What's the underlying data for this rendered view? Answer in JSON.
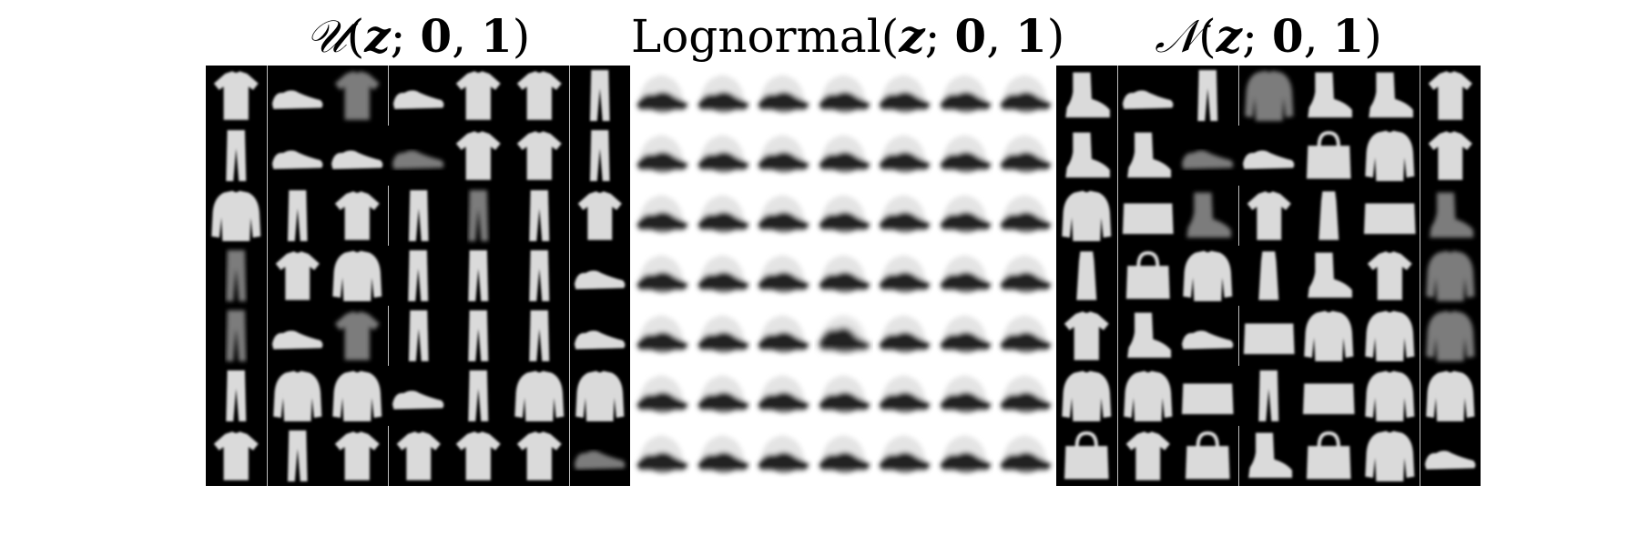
{
  "figure": {
    "panels": [
      {
        "id": "uniform",
        "title_parts": [
          {
            "text": "𝒰",
            "style": "it"
          },
          {
            "text": "(",
            "style": ""
          },
          {
            "text": "z",
            "style": "it bd"
          },
          {
            "text": "; ",
            "style": ""
          },
          {
            "text": "0",
            "style": "bd"
          },
          {
            "text": ", ",
            "style": ""
          },
          {
            "text": "1",
            "style": "bd"
          },
          {
            "text": ")",
            "style": ""
          }
        ],
        "background": "dark",
        "tiles": [
          [
            "shirt",
            "shoe",
            "shirt-faint",
            "shoe",
            "shirt",
            "shirt",
            "trouser"
          ],
          [
            "trouser",
            "shoe",
            "shoe",
            "shoe-faint",
            "shirt",
            "shirt",
            "trouser"
          ],
          [
            "pullover",
            "trouser",
            "shirt",
            "trouser",
            "trouser-faint",
            "trouser",
            "shirt"
          ],
          [
            "trouser-faint",
            "shirt",
            "pullover",
            "trouser",
            "trouser",
            "trouser",
            "shoe"
          ],
          [
            "trouser-faint",
            "shoe",
            "shirt-faint",
            "trouser",
            "trouser",
            "trouser",
            "shoe"
          ],
          [
            "trouser",
            "pullover",
            "pullover",
            "shoe",
            "trouser",
            "pullover",
            "pullover"
          ],
          [
            "shirt",
            "trouser",
            "shirt",
            "shirt",
            "shirt",
            "shirt",
            "shoe-faint"
          ]
        ]
      },
      {
        "id": "lognormal",
        "title_parts": [
          {
            "text": "Lognormal",
            "style": ""
          },
          {
            "text": "(",
            "style": ""
          },
          {
            "text": "z",
            "style": "it bd"
          },
          {
            "text": "; ",
            "style": ""
          },
          {
            "text": "0",
            "style": "bd"
          },
          {
            "text": ", ",
            "style": ""
          },
          {
            "text": "1",
            "style": "bd"
          },
          {
            "text": ")",
            "style": ""
          }
        ],
        "background": "light",
        "tiles": [
          [
            "blob",
            "blob",
            "blob",
            "blob",
            "blob",
            "blob",
            "blob"
          ],
          [
            "blob",
            "blob",
            "blob",
            "blob",
            "blob",
            "blob",
            "blob"
          ],
          [
            "blob",
            "blob",
            "blob",
            "blob",
            "blob",
            "blob",
            "blob"
          ],
          [
            "blob",
            "blob",
            "blob",
            "blob",
            "blob",
            "blob",
            "blob"
          ],
          [
            "blob",
            "blob",
            "blob",
            "blob-big",
            "blob",
            "blob",
            "blob"
          ],
          [
            "blob",
            "blob",
            "blob",
            "blob",
            "blob",
            "blob",
            "blob"
          ],
          [
            "blob",
            "blob",
            "blob",
            "blob",
            "blob",
            "blob",
            "blob"
          ]
        ]
      },
      {
        "id": "normal",
        "title_parts": [
          {
            "text": "𝒩",
            "style": "it"
          },
          {
            "text": "(",
            "style": ""
          },
          {
            "text": "z",
            "style": "it bd"
          },
          {
            "text": "; ",
            "style": ""
          },
          {
            "text": "0",
            "style": "bd"
          },
          {
            "text": ", ",
            "style": ""
          },
          {
            "text": "1",
            "style": "bd"
          },
          {
            "text": ")",
            "style": ""
          }
        ],
        "background": "dark",
        "tiles": [
          [
            "boot",
            "shoe",
            "trouser",
            "pullover-faint",
            "boot",
            "boot",
            "shirt"
          ],
          [
            "boot",
            "boot",
            "shoe-faint",
            "shoe",
            "bag",
            "pullover",
            "shirt"
          ],
          [
            "pullover",
            "bag-wide",
            "boot-faint",
            "shirt",
            "dress",
            "bag-wide",
            "boot-faint"
          ],
          [
            "dress",
            "bag",
            "pullover",
            "dress",
            "boot",
            "shirt",
            "pullover-faint"
          ],
          [
            "shirt",
            "boot",
            "shoe",
            "bag-wide",
            "pullover",
            "pullover",
            "pullover-faint"
          ],
          [
            "pullover",
            "pullover",
            "bag-wide",
            "trouser",
            "bag-wide",
            "pullover",
            "pullover"
          ],
          [
            "bag",
            "shirt",
            "bag",
            "boot",
            "bag",
            "pullover",
            "shoe"
          ]
        ]
      }
    ]
  }
}
